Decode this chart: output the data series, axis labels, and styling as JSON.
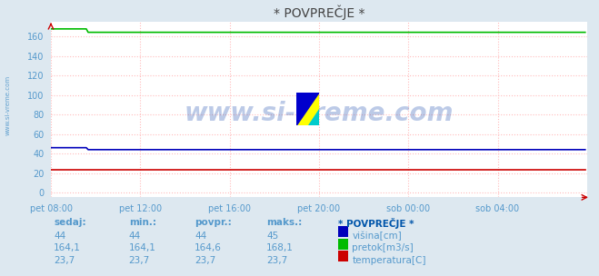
{
  "title": "* POVPREČJE *",
  "bg_color": "#dde8f0",
  "plot_bg_color": "#ffffff",
  "grid_color": "#ffbbbb",
  "watermark_text": "www.si-vreme.com",
  "sidebar_text": "www.si-vreme.com",
  "xlabel_ticks": [
    "pet 08:00",
    "pet 12:00",
    "pet 16:00",
    "pet 20:00",
    "sob 00:00",
    "sob 04:00"
  ],
  "ylim": [
    -5,
    175
  ],
  "xlim": [
    0,
    288
  ],
  "tick_positions": [
    0,
    48,
    96,
    144,
    192,
    240
  ],
  "ytick_vals": [
    0,
    20,
    40,
    60,
    80,
    100,
    120,
    140,
    160
  ],
  "visina_value": "44",
  "visina_min": "44",
  "visina_povpr": "44",
  "visina_maks": "45",
  "pretok_value": "164,1",
  "pretok_min": "164,1",
  "pretok_povpr": "164,6",
  "pretok_maks": "168,1",
  "temp_value": "23,7",
  "temp_min": "23,7",
  "temp_povpr": "23,7",
  "temp_maks": "23,7",
  "visina_color": "#0000bb",
  "pretok_color": "#00bb00",
  "temp_color": "#cc0000",
  "arrow_color": "#cc0000",
  "label_color": "#5599cc",
  "legend_title_color": "#0055aa",
  "title_color": "#444444",
  "n_points": 288,
  "visina_start_high": 46,
  "visina_start_count": 20,
  "visina_flat": 44,
  "pretok_start_high": 168,
  "pretok_start_count": 20,
  "pretok_flat": 164.5,
  "temp_flat": 23.7,
  "logo_yellow": "#ffff00",
  "logo_blue": "#0000cc",
  "logo_cyan": "#00cccc"
}
